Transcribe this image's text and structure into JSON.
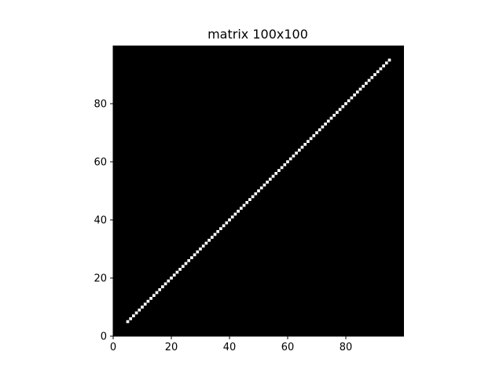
{
  "chart_data": {
    "type": "heatmap",
    "title": "matrix 100x100",
    "xlabel": "",
    "ylabel": "",
    "rows": 100,
    "cols": 100,
    "xlim": [
      0,
      100
    ],
    "ylim": [
      0,
      100
    ],
    "origin": "lower",
    "background_value": 0,
    "nonzero_value": 1,
    "nonzero_cells": {
      "description_free_rule": "diagonal",
      "from": 5,
      "to": 95
    },
    "diagonal_cells": [
      [
        5,
        5
      ],
      [
        6,
        6
      ],
      [
        7,
        7
      ],
      [
        8,
        8
      ],
      [
        9,
        9
      ],
      [
        10,
        10
      ],
      [
        11,
        11
      ],
      [
        12,
        12
      ],
      [
        13,
        13
      ],
      [
        14,
        14
      ],
      [
        15,
        15
      ],
      [
        16,
        16
      ],
      [
        17,
        17
      ],
      [
        18,
        18
      ],
      [
        19,
        19
      ],
      [
        20,
        20
      ],
      [
        21,
        21
      ],
      [
        22,
        22
      ],
      [
        23,
        23
      ],
      [
        24,
        24
      ],
      [
        25,
        25
      ],
      [
        26,
        26
      ],
      [
        27,
        27
      ],
      [
        28,
        28
      ],
      [
        29,
        29
      ],
      [
        30,
        30
      ],
      [
        31,
        31
      ],
      [
        32,
        32
      ],
      [
        33,
        33
      ],
      [
        34,
        34
      ],
      [
        35,
        35
      ],
      [
        36,
        36
      ],
      [
        37,
        37
      ],
      [
        38,
        38
      ],
      [
        39,
        39
      ],
      [
        40,
        40
      ],
      [
        41,
        41
      ],
      [
        42,
        42
      ],
      [
        43,
        43
      ],
      [
        44,
        44
      ],
      [
        45,
        45
      ],
      [
        46,
        46
      ],
      [
        47,
        47
      ],
      [
        48,
        48
      ],
      [
        49,
        49
      ],
      [
        50,
        50
      ],
      [
        51,
        51
      ],
      [
        52,
        52
      ],
      [
        53,
        53
      ],
      [
        54,
        54
      ],
      [
        55,
        55
      ],
      [
        56,
        56
      ],
      [
        57,
        57
      ],
      [
        58,
        58
      ],
      [
        59,
        59
      ],
      [
        60,
        60
      ],
      [
        61,
        61
      ],
      [
        62,
        62
      ],
      [
        63,
        63
      ],
      [
        64,
        64
      ],
      [
        65,
        65
      ],
      [
        66,
        66
      ],
      [
        67,
        67
      ],
      [
        68,
        68
      ],
      [
        69,
        69
      ],
      [
        70,
        70
      ],
      [
        71,
        71
      ],
      [
        72,
        72
      ],
      [
        73,
        73
      ],
      [
        74,
        74
      ],
      [
        75,
        75
      ],
      [
        76,
        76
      ],
      [
        77,
        77
      ],
      [
        78,
        78
      ],
      [
        79,
        79
      ],
      [
        80,
        80
      ],
      [
        81,
        81
      ],
      [
        82,
        82
      ],
      [
        83,
        83
      ],
      [
        84,
        84
      ],
      [
        85,
        85
      ],
      [
        86,
        86
      ],
      [
        87,
        87
      ],
      [
        88,
        88
      ],
      [
        89,
        89
      ],
      [
        90,
        90
      ],
      [
        91,
        91
      ],
      [
        92,
        92
      ],
      [
        93,
        93
      ],
      [
        94,
        94
      ],
      [
        95,
        95
      ]
    ],
    "x_ticks": [
      0,
      20,
      40,
      60,
      80
    ],
    "y_ticks": [
      0,
      20,
      40,
      60,
      80
    ],
    "x_tick_labels": [
      "0",
      "20",
      "40",
      "60",
      "80"
    ],
    "y_tick_labels": [
      "0",
      "20",
      "40",
      "60",
      "80"
    ],
    "colormap": "gray",
    "colors": {
      "low": "#000000",
      "high": "#ffffff",
      "axis": "#000000",
      "figure_background": "#ffffff"
    },
    "grid": false,
    "legend": "none"
  }
}
